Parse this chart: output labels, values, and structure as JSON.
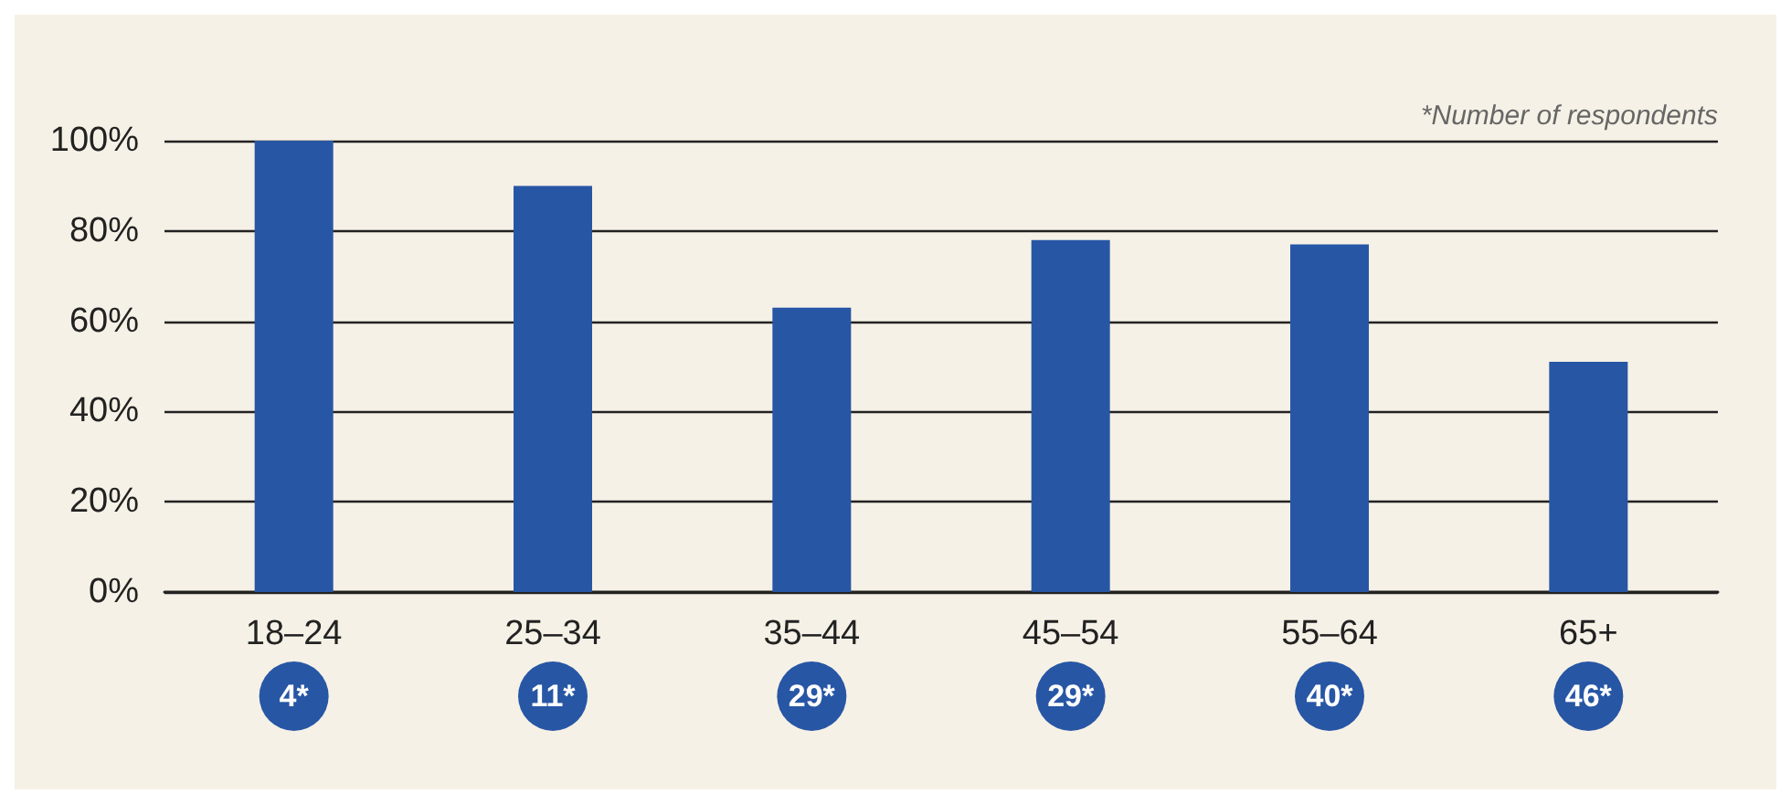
{
  "chart_data": {
    "type": "bar",
    "categories": [
      "18–24",
      "25–34",
      "35–44",
      "45–54",
      "55–64",
      "65+"
    ],
    "values": [
      100,
      90,
      63,
      78,
      77,
      51
    ],
    "color": "#2756a5",
    "ylim": [
      0,
      100
    ],
    "yticks": [
      {
        "value": 0,
        "label": "0%"
      },
      {
        "value": 20,
        "label": "20%"
      },
      {
        "value": 40,
        "label": "40%"
      },
      {
        "value": 60,
        "label": "60%"
      },
      {
        "value": 80,
        "label": "80%"
      },
      {
        "value": 100,
        "label": "100%"
      }
    ],
    "grid": "y",
    "annotations": [
      "*Number of respondents",
      "4*",
      "11*",
      "29*",
      "29*",
      "40*",
      "46*"
    ]
  }
}
